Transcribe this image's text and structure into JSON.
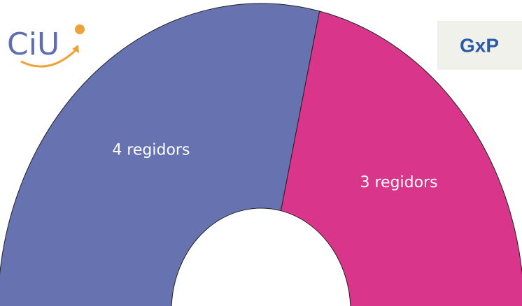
{
  "chart_data": {
    "type": "pie",
    "half": true,
    "categories": [
      "CiU",
      "GxP"
    ],
    "values": [
      4,
      3
    ],
    "value_labels": [
      "4 regidors",
      "3 regidors"
    ],
    "colors": [
      "#6673b0",
      "#d9368b"
    ]
  }
}
